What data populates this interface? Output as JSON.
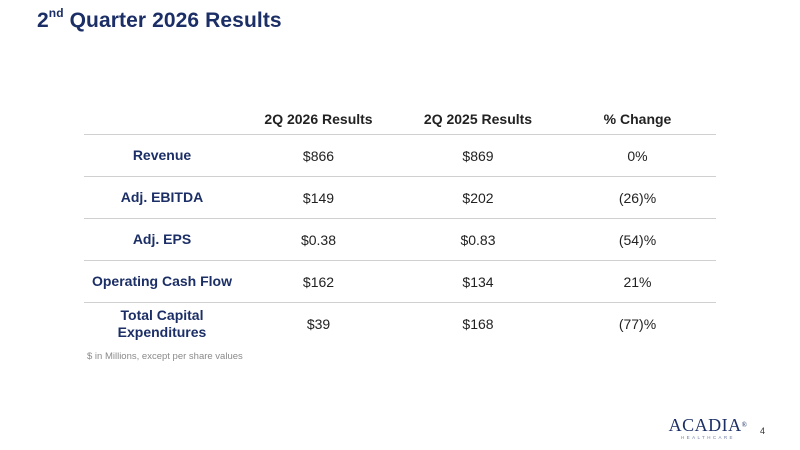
{
  "slide": {
    "title_prefix": "2",
    "title_sup": "nd",
    "title_rest": " Quarter 2026 Results",
    "footnote": "$ in Millions, except per share values",
    "page_number": "4"
  },
  "table": {
    "headers": [
      "",
      "2Q 2026 Results",
      "2Q 2025 Results",
      "% Change"
    ],
    "rows": [
      {
        "metric": "Revenue",
        "q2_2026": "$866",
        "q2_2025": "$869",
        "change": "0%"
      },
      {
        "metric": "Adj. EBITDA",
        "q2_2026": "$149",
        "q2_2025": "$202",
        "change": "(26)%"
      },
      {
        "metric": "Adj. EPS",
        "q2_2026": "$0.38",
        "q2_2025": "$0.83",
        "change": "(54)%"
      },
      {
        "metric": "Operating Cash Flow",
        "q2_2026": "$162",
        "q2_2025": "$134",
        "change": "21%"
      },
      {
        "metric": "Total Capital Expenditures",
        "q2_2026": "$39",
        "q2_2025": "$168",
        "change": "(77)%"
      }
    ]
  },
  "logo": {
    "wordmark": "ACADIA",
    "registered": "®",
    "tagline": "HEALTHCARE"
  },
  "colors": {
    "brand_navy": "#1b2e66",
    "text": "#222222",
    "rule": "#d0d0d0",
    "footnote": "#8a8a8a"
  }
}
